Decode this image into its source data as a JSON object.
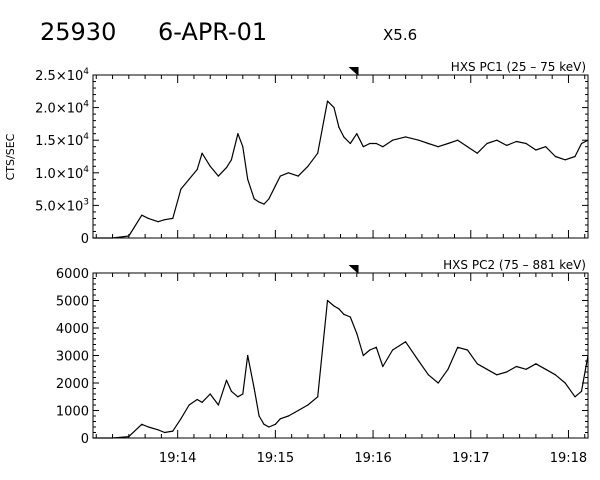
{
  "header": {
    "event_id": "25930",
    "date": "6-APR-01",
    "class": "X5.6"
  },
  "shared_ylabel": "CTS/SEC",
  "chart_data": [
    {
      "type": "line",
      "title": "HXS PC1 (25 – 75 keV)",
      "ylabel": "CTS/SEC",
      "xlim": [
        "19:13:08",
        "19:18:12"
      ],
      "ylim": [
        0,
        25000
      ],
      "yticks": [
        {
          "value": 0,
          "label": "0"
        },
        {
          "value": 5000,
          "label": "5.0×10",
          "exp": "3"
        },
        {
          "value": 10000,
          "label": "1.0×10",
          "exp": "4"
        },
        {
          "value": 15000,
          "label": "1.5×10",
          "exp": "4"
        },
        {
          "value": 20000,
          "label": "2.0×10",
          "exp": "4"
        },
        {
          "value": 25000,
          "label": "2.5×10",
          "exp": "4"
        }
      ],
      "marker_time": "19:15:48",
      "series": [
        {
          "x": [
            "19:13:08",
            "19:13:20",
            "19:13:30",
            "19:13:38",
            "19:13:42",
            "19:13:48",
            "19:13:52",
            "19:13:57",
            "19:14:02",
            "19:14:07",
            "19:14:12",
            "19:14:15",
            "19:14:20",
            "19:14:25",
            "19:14:30",
            "19:14:33",
            "19:14:37",
            "19:14:40",
            "19:14:43",
            "19:14:47",
            "19:14:50",
            "19:14:53",
            "19:14:56",
            "19:15:00",
            "19:15:03",
            "19:15:08",
            "19:15:14",
            "19:15:20",
            "19:15:26",
            "19:15:32",
            "19:15:36",
            "19:15:39",
            "19:15:42",
            "19:15:46",
            "19:15:50",
            "19:15:54",
            "19:15:58",
            "19:16:02",
            "19:16:06",
            "19:16:12",
            "19:16:20",
            "19:16:28",
            "19:16:34",
            "19:16:40",
            "19:16:46",
            "19:16:52",
            "19:16:58",
            "19:17:04",
            "19:17:10",
            "19:17:16",
            "19:17:22",
            "19:17:28",
            "19:17:34",
            "19:17:40",
            "19:17:46",
            "19:17:52",
            "19:17:58",
            "19:18:04",
            "19:18:08",
            "19:18:12"
          ],
          "y": [
            0,
            0,
            300,
            3500,
            3000,
            2500,
            2800,
            3000,
            7500,
            9000,
            10500,
            13000,
            11000,
            9500,
            10800,
            12000,
            16000,
            14000,
            9000,
            6000,
            5500,
            5200,
            6000,
            8000,
            9500,
            10000,
            9500,
            11000,
            13000,
            21000,
            20000,
            17000,
            15500,
            14500,
            16000,
            14000,
            14500,
            14500,
            14000,
            15000,
            15500,
            15000,
            14500,
            14000,
            14500,
            15000,
            14000,
            13000,
            14500,
            15000,
            14200,
            14800,
            14500,
            13500,
            14000,
            12500,
            12000,
            12500,
            14500,
            15000
          ]
        }
      ]
    },
    {
      "type": "line",
      "title": "HXS PC2 (75 – 881 keV)",
      "ylabel": "CTS/SEC",
      "xlabel": "",
      "xticks": [
        "19:14",
        "19:15",
        "19:16",
        "19:17",
        "19:18"
      ],
      "xlim": [
        "19:13:08",
        "19:18:12"
      ],
      "ylim": [
        0,
        6000
      ],
      "yticks": [
        {
          "value": 0,
          "label": "0"
        },
        {
          "value": 1000,
          "label": "1000"
        },
        {
          "value": 2000,
          "label": "2000"
        },
        {
          "value": 3000,
          "label": "3000"
        },
        {
          "value": 4000,
          "label": "4000"
        },
        {
          "value": 5000,
          "label": "5000"
        },
        {
          "value": 6000,
          "label": "6000"
        }
      ],
      "marker_time": "19:15:48",
      "series": [
        {
          "x": [
            "19:13:08",
            "19:13:20",
            "19:13:30",
            "19:13:38",
            "19:13:42",
            "19:13:48",
            "19:13:52",
            "19:13:57",
            "19:14:02",
            "19:14:07",
            "19:14:12",
            "19:14:15",
            "19:14:20",
            "19:14:25",
            "19:14:30",
            "19:14:33",
            "19:14:37",
            "19:14:40",
            "19:14:43",
            "19:14:47",
            "19:14:50",
            "19:14:53",
            "19:14:56",
            "19:15:00",
            "19:15:03",
            "19:15:08",
            "19:15:14",
            "19:15:20",
            "19:15:26",
            "19:15:32",
            "19:15:36",
            "19:15:39",
            "19:15:42",
            "19:15:46",
            "19:15:50",
            "19:15:54",
            "19:15:58",
            "19:16:02",
            "19:16:06",
            "19:16:12",
            "19:16:20",
            "19:16:28",
            "19:16:34",
            "19:16:40",
            "19:16:46",
            "19:16:52",
            "19:16:58",
            "19:17:04",
            "19:17:10",
            "19:17:16",
            "19:17:22",
            "19:17:28",
            "19:17:34",
            "19:17:40",
            "19:17:46",
            "19:17:52",
            "19:17:58",
            "19:18:04",
            "19:18:08",
            "19:18:12"
          ],
          "y": [
            0,
            0,
            50,
            500,
            400,
            300,
            200,
            250,
            700,
            1200,
            1400,
            1300,
            1600,
            1200,
            2100,
            1700,
            1500,
            1600,
            3000,
            1800,
            800,
            500,
            400,
            500,
            700,
            800,
            1000,
            1200,
            1500,
            5000,
            4800,
            4700,
            4500,
            4400,
            3800,
            3000,
            3200,
            3300,
            2600,
            3200,
            3500,
            2800,
            2300,
            2000,
            2500,
            3300,
            3200,
            2700,
            2500,
            2300,
            2400,
            2600,
            2500,
            2700,
            2500,
            2300,
            2000,
            1500,
            1700,
            3000
          ]
        }
      ]
    }
  ]
}
